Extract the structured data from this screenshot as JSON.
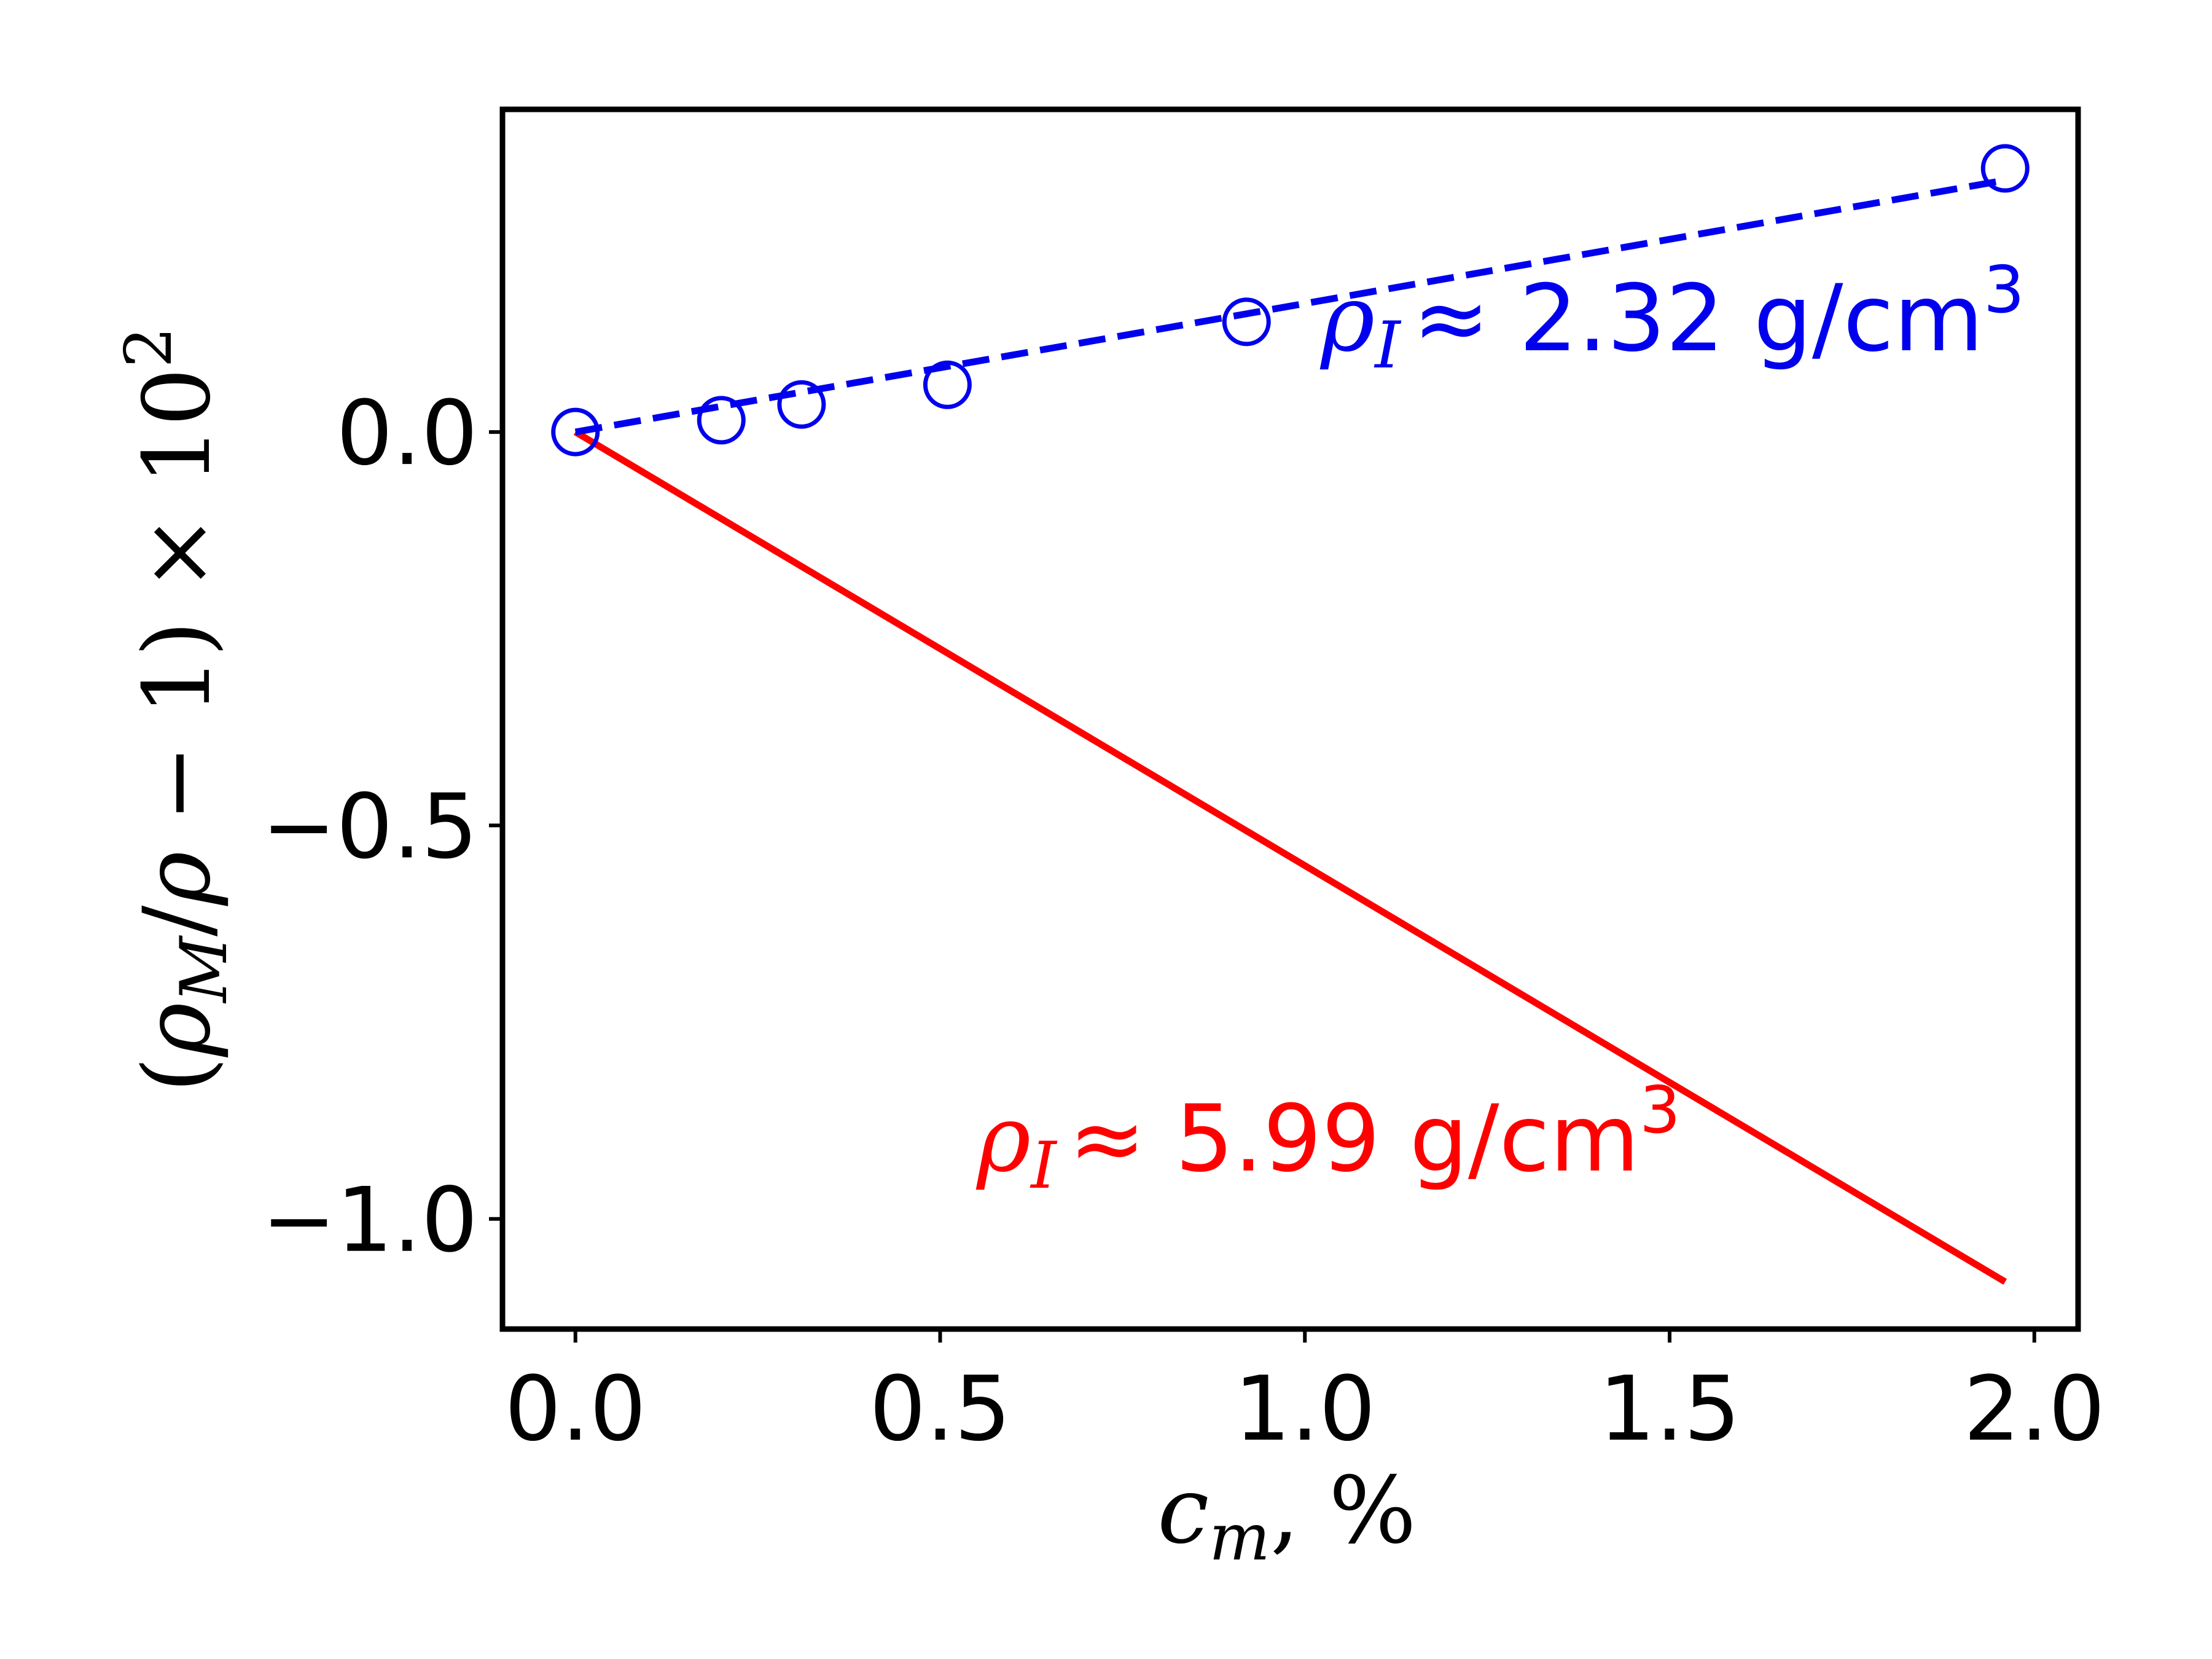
{
  "chart_data": {
    "type": "line",
    "title": "",
    "xlabel": "c_m, %",
    "ylabel": "(ρ_M/ρ − 1) × 10^2",
    "xlim": [
      -0.1,
      2.06
    ],
    "ylim": [
      -1.14,
      0.41
    ],
    "xticks": [
      0.0,
      0.5,
      1.0,
      1.5,
      2.0
    ],
    "xtick_labels": [
      "0.0",
      "0.5",
      "1.0",
      "1.5",
      "2.0"
    ],
    "yticks": [
      0.0,
      -0.5,
      -1.0
    ],
    "ytick_labels": [
      "0.0",
      "−0.5",
      "−1.0"
    ],
    "grid": false,
    "series": [
      {
        "kind": "markers+dashed-fit",
        "color": "#0000ee",
        "x": [
          0.0,
          0.2,
          0.31,
          0.51,
          0.92,
          1.96
        ],
        "y": [
          0.0,
          0.015,
          0.035,
          0.06,
          0.14,
          0.335
        ],
        "fit": {
          "x": [
            0.0,
            1.96
          ],
          "y": [
            0.0,
            0.32
          ]
        },
        "annotation": {
          "symbol": "ρ",
          "subscript": "I",
          "text": "≈ 2.32 g/cm",
          "superscript": "3"
        }
      },
      {
        "kind": "solid-line",
        "color": "#ff0000",
        "x": [
          0.0,
          1.96
        ],
        "y": [
          0.0,
          -1.08
        ],
        "annotation": {
          "symbol": "ρ",
          "subscript": "I",
          "text": "≈ 5.99 g/cm",
          "superscript": "3"
        }
      }
    ]
  }
}
